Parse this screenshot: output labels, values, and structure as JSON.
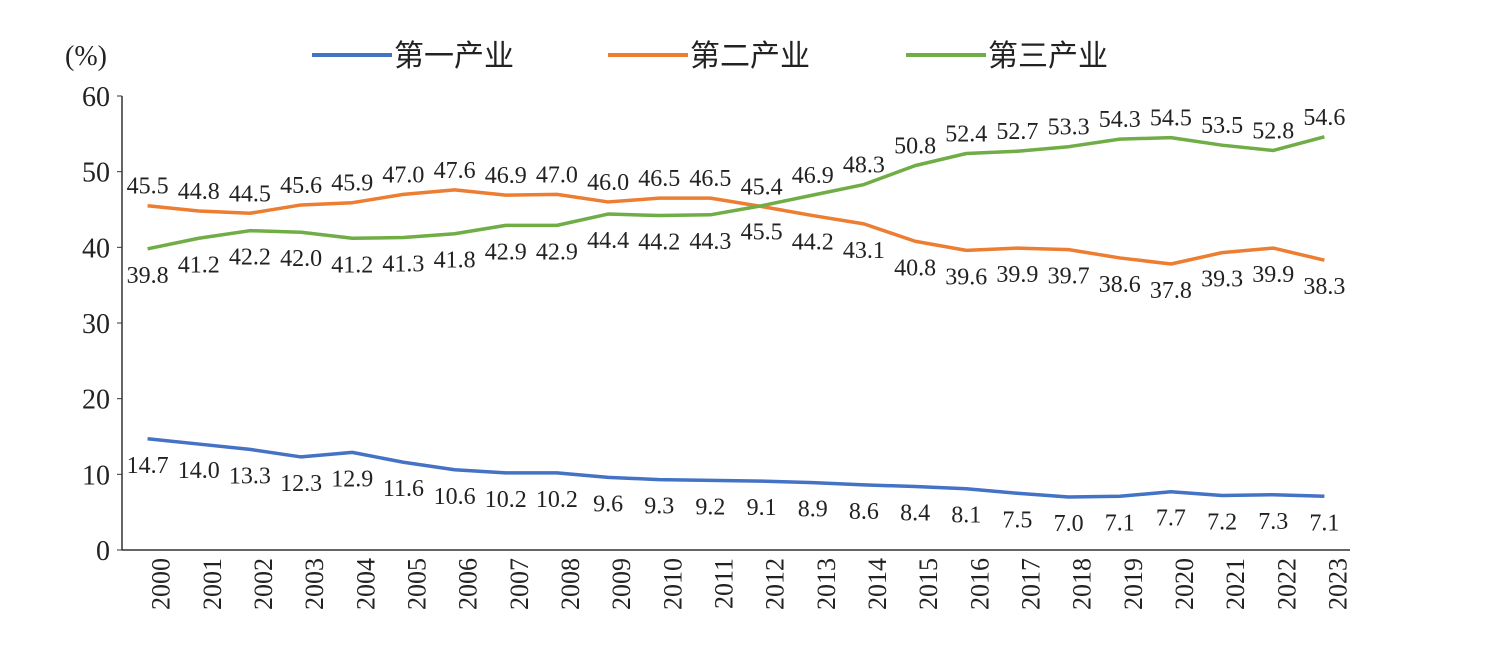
{
  "chart_data": {
    "type": "line",
    "title": "",
    "ylabel": "(%)",
    "xlabel": "",
    "ylim": [
      0,
      60
    ],
    "yticks": [
      0,
      10,
      20,
      30,
      40,
      50,
      60
    ],
    "grid": false,
    "legend_position": "top-center",
    "categories": [
      "2000",
      "2001",
      "2002",
      "2003",
      "2004",
      "2005",
      "2006",
      "2007",
      "2008",
      "2009",
      "2010",
      "2011",
      "2012",
      "2013",
      "2014",
      "2015",
      "2016",
      "2017",
      "2018",
      "2019",
      "2020",
      "2021",
      "2022",
      "2023"
    ],
    "series": [
      {
        "name": "第一产业",
        "color": "#4472c4",
        "values": [
          14.7,
          14.0,
          13.3,
          12.3,
          12.9,
          11.6,
          10.6,
          10.2,
          10.2,
          9.6,
          9.3,
          9.2,
          9.1,
          8.9,
          8.6,
          8.4,
          8.1,
          7.5,
          7.0,
          7.1,
          7.7,
          7.2,
          7.3,
          7.1
        ]
      },
      {
        "name": "第二产业",
        "color": "#ed7d31",
        "values": [
          45.5,
          44.8,
          44.5,
          45.6,
          45.9,
          47.0,
          47.6,
          46.9,
          47.0,
          46.0,
          46.5,
          46.5,
          45.4,
          44.2,
          43.1,
          40.8,
          39.6,
          39.9,
          39.7,
          38.6,
          37.8,
          39.3,
          39.9,
          38.3
        ]
      },
      {
        "name": "第三产业",
        "color": "#70ad47",
        "values": [
          39.8,
          41.2,
          42.2,
          42.0,
          41.2,
          41.3,
          41.8,
          42.9,
          42.9,
          44.4,
          44.2,
          44.3,
          45.5,
          46.9,
          48.3,
          50.8,
          52.4,
          52.7,
          53.3,
          54.3,
          54.5,
          53.5,
          52.8,
          54.6
        ]
      }
    ]
  }
}
